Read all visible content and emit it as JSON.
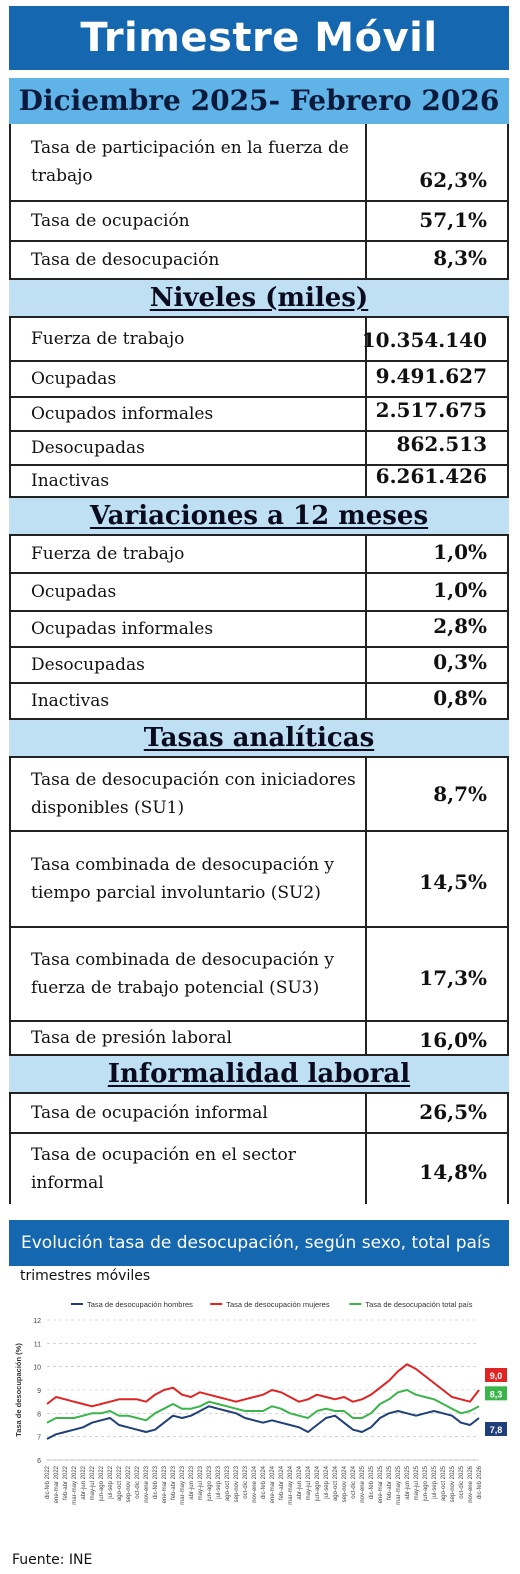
{
  "title": "Trimestre Móvil",
  "period": "Diciembre 2025- Febrero 2026",
  "rates": [
    {
      "label": "Tasa de participación en la fuerza de trabajo",
      "value": "62,3%"
    },
    {
      "label": "Tasa de ocupación",
      "value": "57,1%"
    },
    {
      "label": "Tasa de desocupación",
      "value": "8,3%"
    }
  ],
  "levels": {
    "title": "Niveles  (miles)",
    "rows": [
      {
        "label": "Fuerza de trabajo",
        "value": "10.354.140"
      },
      {
        "label": "Ocupadas",
        "value": "9.491.627"
      },
      {
        "label": "Ocupados informales",
        "value": "2.517.675"
      },
      {
        "label": "Desocupadas",
        "value": "862.513"
      },
      {
        "label": "Inactivas",
        "value": "6.261.426"
      }
    ]
  },
  "variations": {
    "title": "Variaciones a 12 meses",
    "rows": [
      {
        "label": "Fuerza de trabajo",
        "value": "1,0%"
      },
      {
        "label": "Ocupadas",
        "value": "1,0%"
      },
      {
        "label": "Ocupadas informales",
        "value": "2,8%"
      },
      {
        "label": "Desocupadas",
        "value": "0,3%"
      },
      {
        "label": "Inactivas",
        "value": "0,8%"
      }
    ]
  },
  "analytic": {
    "title": "Tasas  analíticas",
    "rows": [
      {
        "label": "Tasa de desocupación con iniciadores disponibles (SU1)",
        "value": "8,7%"
      },
      {
        "label": "Tasa combinada de desocupación y tiempo parcial involuntario (SU2)",
        "value": "14,5%"
      },
      {
        "label": "Tasa combinada de desocupación y fuerza de trabajo potencial (SU3)",
        "value": "17,3%"
      },
      {
        "label": "Tasa de presión laboral",
        "value": "16,0%"
      }
    ]
  },
  "informality": {
    "title": "Informalidad  laboral",
    "rows": [
      {
        "label": "Tasa de ocupación informal",
        "value": "26,5%"
      },
      {
        "label": "Tasa de ocupación en el sector informal",
        "value": "14,8%"
      }
    ]
  },
  "chart_header": "Evolución tasa de desocupación, según sexo, total país",
  "chart_subtitle": "trimestres móviles",
  "footer": "Fuente: INE",
  "chart_data": {
    "type": "line",
    "ylabel": "Tasa de desocupación (%)",
    "ylim": [
      6,
      12
    ],
    "yticks": [
      "6",
      "7",
      "8",
      "9",
      "10",
      "11",
      "12"
    ],
    "grid": true,
    "legend_position": "top",
    "x": [
      "dic-feb 2022",
      "ene-mar 2022",
      "feb-abr 2022",
      "mar-may 2022",
      "abr-jun 2022",
      "may-jul 2022",
      "jun-ago 2022",
      "jul-sep 2022",
      "ago-oct 2022",
      "sep-nov 2022",
      "oct-dic 2022",
      "nov-ene 2023",
      "dic-feb 2023",
      "ene-mar 2023",
      "feb-abr 2023",
      "mar-may 2023",
      "abr-jun 2023",
      "may-jul 2023",
      "jun-ago 2023",
      "jul-sep 2023",
      "ago-oct 2023",
      "sep-nov 2023",
      "oct-dic 2023",
      "nov-ene 2024",
      "dic-feb 2024",
      "ene-mar 2024",
      "feb-abr 2024",
      "mar-may 2024",
      "abr-jun 2024",
      "may-jul 2024",
      "jun-ago 2024",
      "jul-sep 2024",
      "ago-oct 2024",
      "sep-nov 2024",
      "oct-dic 2024",
      "nov-ene 2025",
      "dic-feb 2025",
      "ene-mar 2025",
      "feb-abr 2025",
      "mar-may 2025",
      "abr-jun 2025",
      "may-jul 2025",
      "jun-ago 2025",
      "jul-sep 2025",
      "ago-oct 2025",
      "sep-nov 2025",
      "oct-dic 2025",
      "nov-ene 2026",
      "dic-feb 2026"
    ],
    "series": [
      {
        "name": "Tasa de desocupación hombres",
        "color": "#1f3f7a",
        "values": [
          6.9,
          7.1,
          7.2,
          7.3,
          7.4,
          7.6,
          7.7,
          7.8,
          7.5,
          7.4,
          7.3,
          7.2,
          7.3,
          7.6,
          7.9,
          7.8,
          7.9,
          8.1,
          8.3,
          8.2,
          8.1,
          8.0,
          7.8,
          7.7,
          7.6,
          7.7,
          7.6,
          7.5,
          7.4,
          7.2,
          7.5,
          7.8,
          7.9,
          7.6,
          7.3,
          7.2,
          7.4,
          7.8,
          8.0,
          8.1,
          8.0,
          7.9,
          8.0,
          8.1,
          8.0,
          7.9,
          7.6,
          7.5,
          7.8
        ],
        "end_label": "7,8"
      },
      {
        "name": "Tasa de desocupación mujeres",
        "color": "#e02424",
        "values": [
          8.4,
          8.7,
          8.6,
          8.5,
          8.4,
          8.3,
          8.4,
          8.5,
          8.6,
          8.6,
          8.6,
          8.5,
          8.8,
          9.0,
          9.1,
          8.8,
          8.7,
          8.9,
          8.8,
          8.7,
          8.6,
          8.5,
          8.6,
          8.7,
          8.8,
          9.0,
          8.9,
          8.7,
          8.5,
          8.6,
          8.8,
          8.7,
          8.6,
          8.7,
          8.5,
          8.6,
          8.8,
          9.1,
          9.4,
          9.8,
          10.1,
          9.9,
          9.6,
          9.3,
          9.0,
          8.7,
          8.6,
          8.5,
          9.0
        ],
        "end_label": "9,0"
      },
      {
        "name": "Tasa de desocupación total país",
        "color": "#3ab54a",
        "values": [
          7.6,
          7.8,
          7.8,
          7.8,
          7.9,
          8.0,
          8.0,
          8.1,
          7.9,
          7.9,
          7.8,
          7.7,
          8.0,
          8.2,
          8.4,
          8.2,
          8.2,
          8.3,
          8.5,
          8.4,
          8.3,
          8.2,
          8.1,
          8.1,
          8.1,
          8.3,
          8.2,
          8.0,
          7.9,
          7.8,
          8.1,
          8.2,
          8.1,
          8.1,
          7.8,
          7.8,
          8.0,
          8.4,
          8.6,
          8.9,
          9.0,
          8.8,
          8.7,
          8.6,
          8.4,
          8.2,
          8.0,
          8.1,
          8.3
        ],
        "end_label": "8,3"
      }
    ]
  }
}
